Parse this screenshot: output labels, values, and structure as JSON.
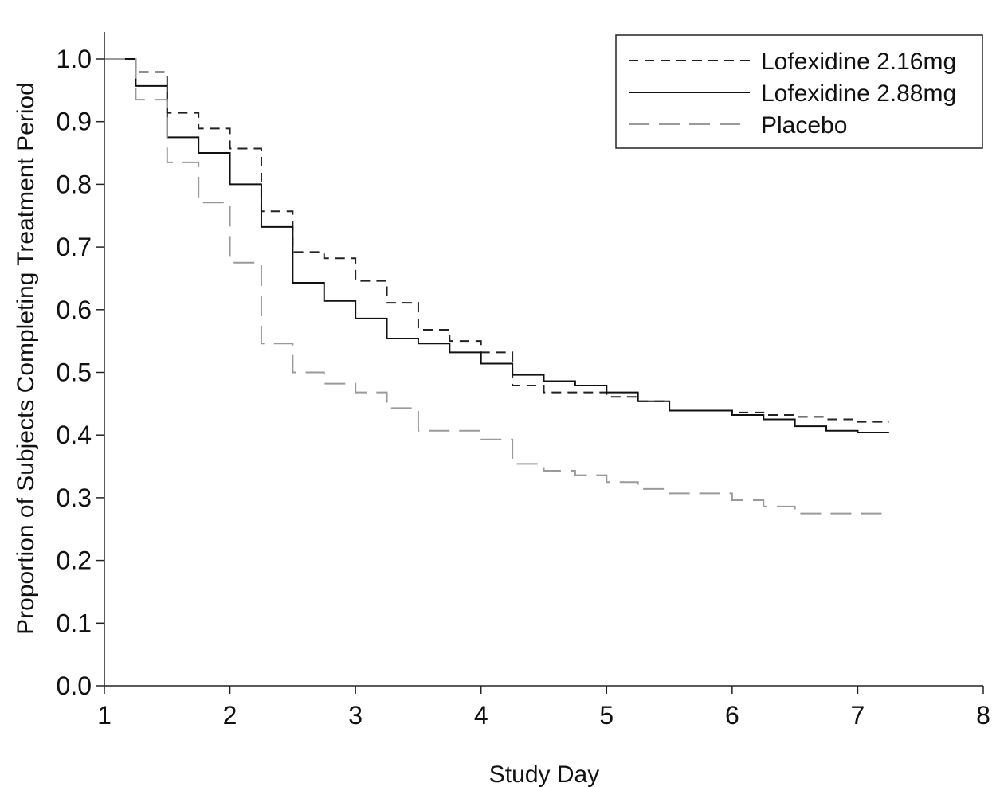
{
  "chart_data": {
    "type": "line",
    "step": true,
    "title": "",
    "xlabel": "Study Day",
    "ylabel": "Proportion of Subjects Completing Treatment Period",
    "xlim": [
      1,
      8
    ],
    "ylim": [
      0.0,
      1.0
    ],
    "xticks": [
      "1",
      "2",
      "3",
      "4",
      "5",
      "6",
      "7",
      "8"
    ],
    "yticks": [
      "0.0",
      "0.1",
      "0.2",
      "0.3",
      "0.4",
      "0.5",
      "0.6",
      "0.7",
      "0.8",
      "0.9",
      "1.0"
    ],
    "grid": false,
    "legend_position": "top-right",
    "series": [
      {
        "name": "Lofexidine 2.16mg",
        "line_style": "short-dash",
        "color": "#222222",
        "x": [
          1,
          1.25,
          1.5,
          1.75,
          2,
          2.25,
          2.5,
          2.75,
          3,
          3.25,
          3.5,
          3.75,
          4,
          4.25,
          4.5,
          4.75,
          5,
          5.25,
          5.5,
          5.75,
          6,
          6.25,
          6.5,
          6.75,
          7,
          7.25
        ],
        "y": [
          1.0,
          0.979,
          0.914,
          0.889,
          0.857,
          0.757,
          0.692,
          0.682,
          0.646,
          0.611,
          0.568,
          0.55,
          0.532,
          0.479,
          0.468,
          0.468,
          0.461,
          0.454,
          0.439,
          0.439,
          0.436,
          0.432,
          0.429,
          0.425,
          0.421,
          0.421
        ]
      },
      {
        "name": "Lofexidine 2.88mg",
        "line_style": "solid",
        "color": "#111111",
        "x": [
          1,
          1.25,
          1.5,
          1.75,
          2,
          2.25,
          2.5,
          2.75,
          3,
          3.25,
          3.5,
          3.75,
          4,
          4.25,
          4.5,
          4.75,
          5,
          5.25,
          5.5,
          5.75,
          6,
          6.25,
          6.5,
          6.75,
          7,
          7.25
        ],
        "y": [
          1.0,
          0.957,
          0.875,
          0.85,
          0.8,
          0.732,
          0.643,
          0.614,
          0.586,
          0.554,
          0.546,
          0.532,
          0.514,
          0.496,
          0.486,
          0.479,
          0.468,
          0.454,
          0.439,
          0.439,
          0.432,
          0.425,
          0.414,
          0.407,
          0.404,
          0.404
        ]
      },
      {
        "name": "Placebo",
        "line_style": "long-dash",
        "color": "#9a9a9a",
        "x": [
          1,
          1.25,
          1.5,
          1.75,
          2,
          2.25,
          2.5,
          2.75,
          3,
          3.25,
          3.5,
          3.75,
          4,
          4.25,
          4.5,
          4.75,
          5,
          5.25,
          5.5,
          5.75,
          6,
          6.25,
          6.5,
          6.75,
          7,
          7.25
        ],
        "y": [
          1.0,
          0.935,
          0.835,
          0.771,
          0.675,
          0.546,
          0.5,
          0.482,
          0.468,
          0.443,
          0.407,
          0.407,
          0.393,
          0.354,
          0.343,
          0.336,
          0.325,
          0.314,
          0.307,
          0.307,
          0.296,
          0.286,
          0.275,
          0.275,
          0.275,
          0.275
        ]
      }
    ]
  }
}
